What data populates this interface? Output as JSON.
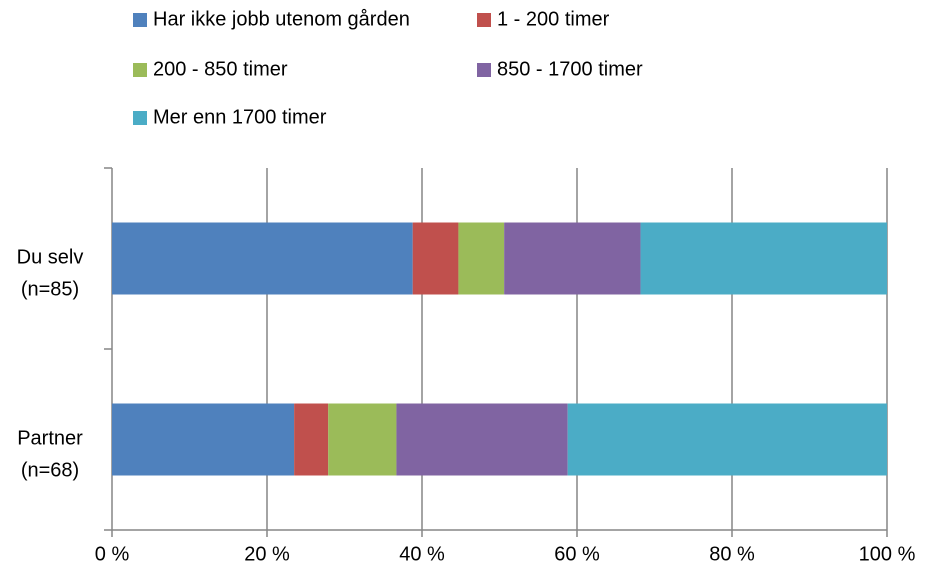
{
  "chart_data": {
    "type": "stacked_barh",
    "categories": [
      "Du selv\n(n=85)",
      "Partner\n(n=68)"
    ],
    "series": [
      {
        "name": "Har ikke jobb utenom gården",
        "color": "#4f81bd",
        "values": [
          38.8,
          23.5
        ]
      },
      {
        "name": "1 - 200 timer",
        "color": "#c0504d",
        "values": [
          5.9,
          4.4
        ]
      },
      {
        "name": "200 - 850 timer",
        "color": "#9bbb59",
        "values": [
          5.9,
          8.8
        ]
      },
      {
        "name": "850 - 1700 timer",
        "color": "#8064a2",
        "values": [
          17.6,
          22.1
        ]
      },
      {
        "name": "Mer enn 1700 timer",
        "color": "#4bacc6",
        "values": [
          31.8,
          41.2
        ]
      }
    ],
    "xlim": [
      0,
      100
    ],
    "xticks": [
      {
        "value": 0,
        "label": "0 %"
      },
      {
        "value": 20,
        "label": "20 %"
      },
      {
        "value": 40,
        "label": "40 %"
      },
      {
        "value": 60,
        "label": "60 %"
      },
      {
        "value": 80,
        "label": "80 %"
      },
      {
        "value": 100,
        "label": "100 %"
      }
    ],
    "grid": true,
    "legend": "top"
  }
}
